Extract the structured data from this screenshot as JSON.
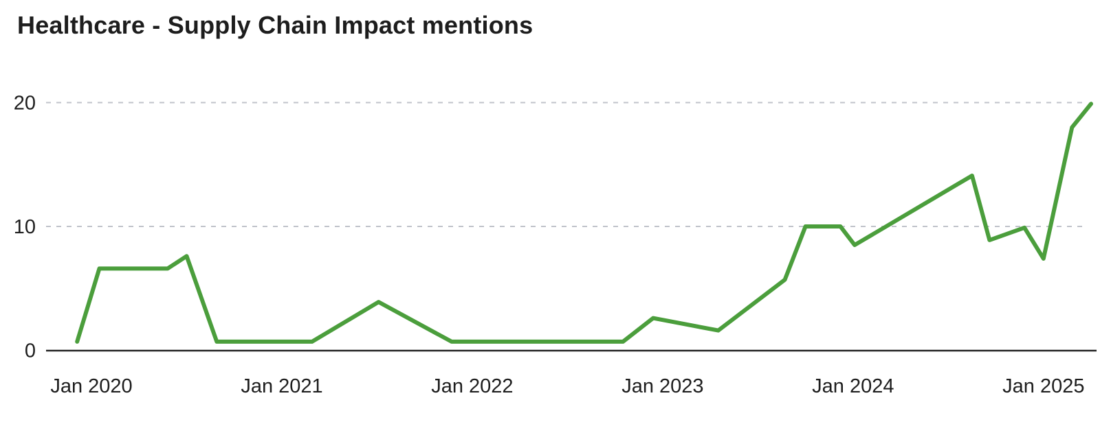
{
  "header": {
    "title": "Healthcare - Supply Chain Impact mentions"
  },
  "chart_data": {
    "type": "line",
    "title": "Healthcare - Supply Chain Impact mentions",
    "xlabel": "",
    "ylabel": "",
    "x_unit": "months since Jan 2020 (fractional, read from plot)",
    "x_ticks": [
      {
        "m": 0,
        "label": "Jan 2020"
      },
      {
        "m": 12,
        "label": "Jan 2021"
      },
      {
        "m": 24,
        "label": "Jan 2022"
      },
      {
        "m": 36,
        "label": "Jan 2023"
      },
      {
        "m": 48,
        "label": "Jan 2024"
      },
      {
        "m": 60,
        "label": "Jan 2025"
      }
    ],
    "y_ticks": [
      0,
      10,
      20
    ],
    "ylim": [
      0,
      22
    ],
    "xlim": [
      -2.9,
      63.4
    ],
    "grid": "horizontal-dashed",
    "legend": "none",
    "series": [
      {
        "name": "Supply Chain Impact mentions",
        "color": "#4B9E3C",
        "points": [
          [
            -0.9,
            0.7
          ],
          [
            0.5,
            6.6
          ],
          [
            4.8,
            6.6
          ],
          [
            6.0,
            7.6
          ],
          [
            7.9,
            0.7
          ],
          [
            13.9,
            0.7
          ],
          [
            18.1,
            3.9
          ],
          [
            22.7,
            0.7
          ],
          [
            33.5,
            0.7
          ],
          [
            35.4,
            2.6
          ],
          [
            39.5,
            1.6
          ],
          [
            43.7,
            5.7
          ],
          [
            45.0,
            10.0
          ],
          [
            47.2,
            10.0
          ],
          [
            48.1,
            8.5
          ],
          [
            55.5,
            14.1
          ],
          [
            56.6,
            8.9
          ],
          [
            58.8,
            9.9
          ],
          [
            60.0,
            7.4
          ],
          [
            61.8,
            18.0
          ],
          [
            63.0,
            19.9
          ]
        ]
      }
    ],
    "colors": {
      "line": "#4B9E3C",
      "grid": "#c0c3ca",
      "axis": "#222222",
      "text": "#1d1d1d",
      "background": "#ffffff"
    }
  }
}
